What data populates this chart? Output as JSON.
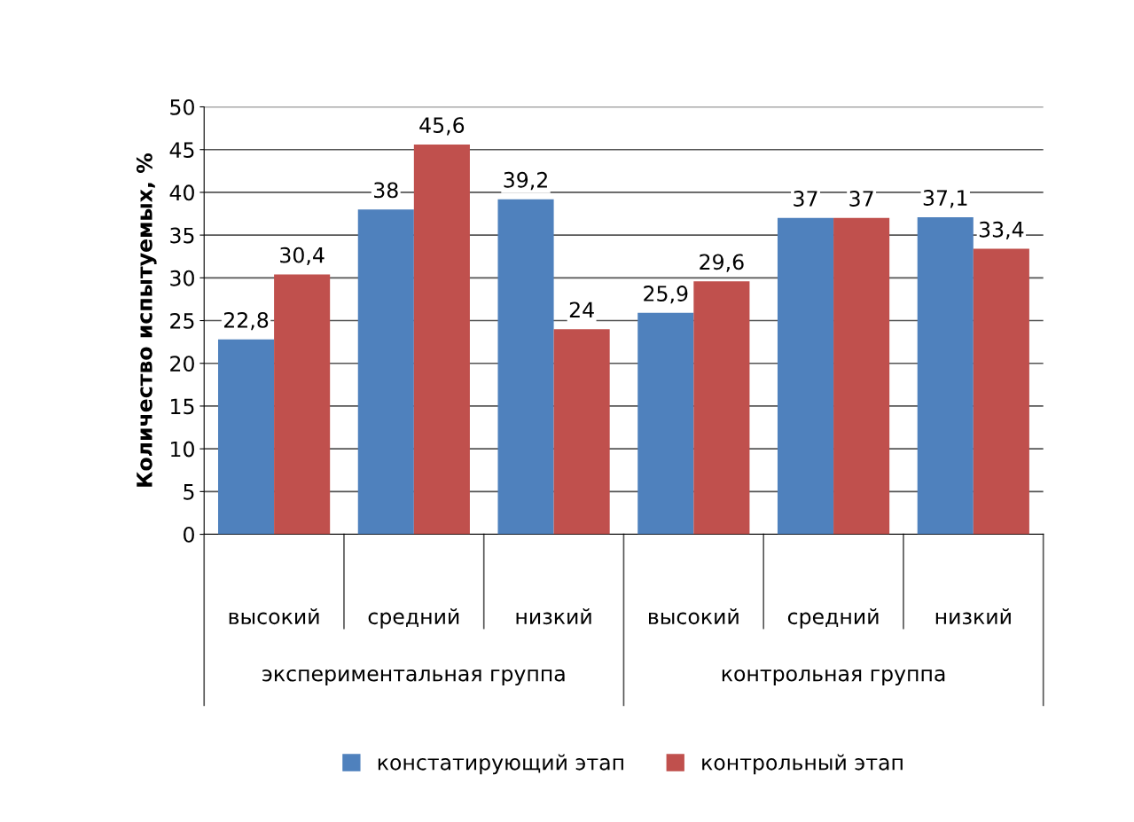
{
  "chart_data": {
    "type": "bar",
    "ylabel": "Количество испытуемых, %",
    "categories": [
      "высокий",
      "средний",
      "низкий",
      "высокий",
      "средний",
      "низкий"
    ],
    "series": [
      {
        "name": "констатирующий этап",
        "color": "#4f81bd",
        "values": [
          22.8,
          38,
          39.2,
          25.9,
          37,
          37.1
        ],
        "value_labels": [
          "22,8",
          "38",
          "39,2",
          "25,9",
          "37",
          "37,1"
        ]
      },
      {
        "name": "контрольный этап",
        "color": "#c0504d",
        "values": [
          30.4,
          45.6,
          24,
          29.6,
          37,
          33.4
        ],
        "value_labels": [
          "30,4",
          "45,6",
          "24",
          "29,6",
          "37",
          "33,4"
        ]
      }
    ],
    "annotations": [
      "экспериментальная группа",
      "контрольная группа"
    ],
    "ylim": [
      0,
      50
    ],
    "yticks": [
      0,
      5,
      10,
      15,
      20,
      25,
      30,
      35,
      40,
      45,
      50
    ],
    "grid": "y",
    "legend": "bottom"
  }
}
